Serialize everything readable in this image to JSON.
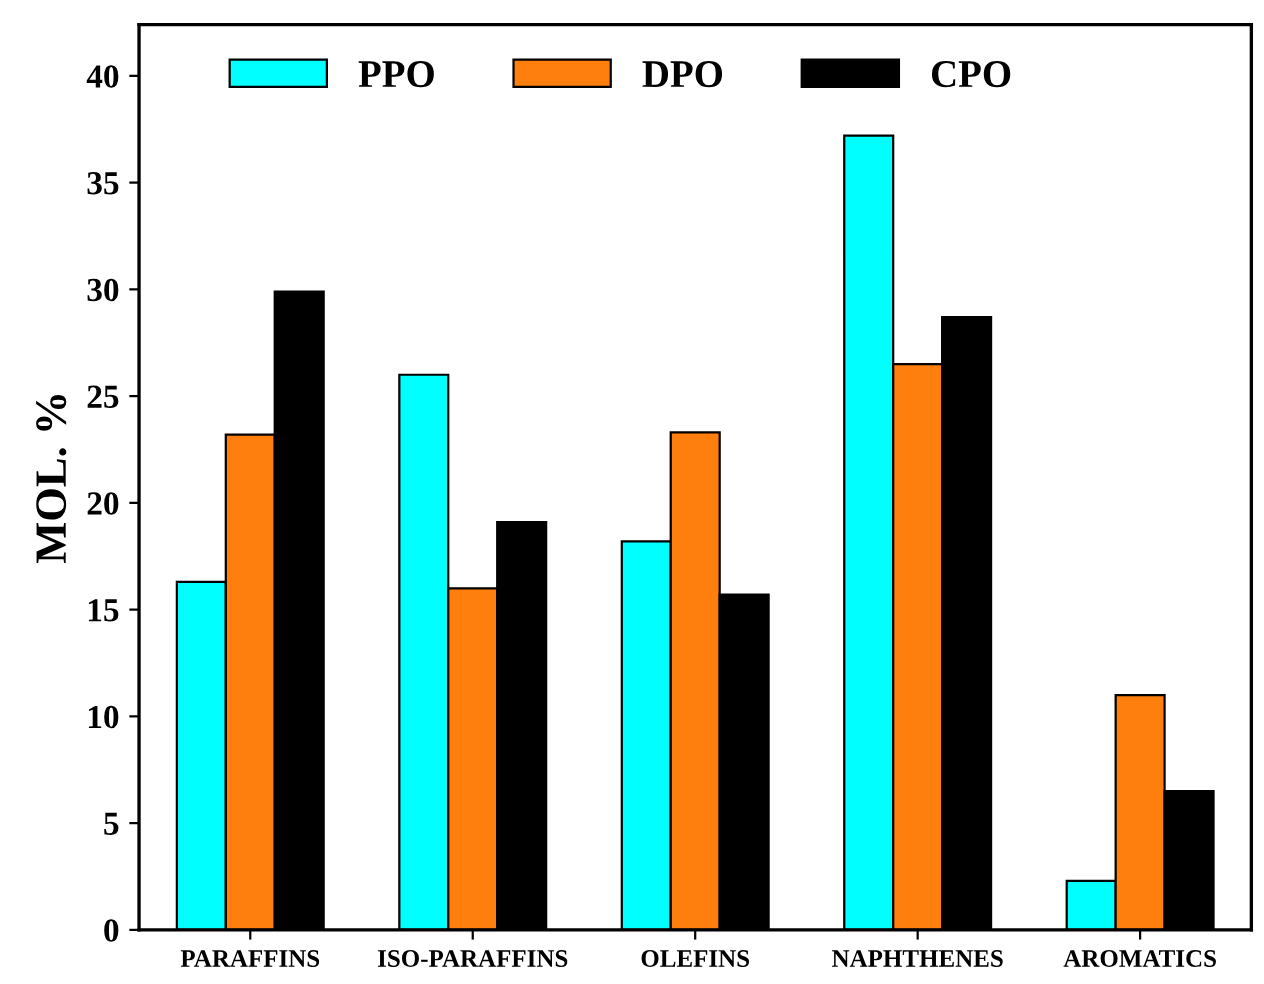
{
  "chart_data": {
    "type": "bar",
    "ylabel": "MOL. %",
    "categories": [
      "PARAFFINS",
      "ISO-PARAFFINS",
      "OLEFINS",
      "NAPHTHENES",
      "AROMATICS"
    ],
    "series": [
      {
        "name": "PPO",
        "color": "#00ffff",
        "values": [
          16.3,
          26.0,
          18.2,
          37.2,
          2.3
        ]
      },
      {
        "name": "DPO",
        "color": "#ff7f0e",
        "values": [
          23.2,
          16.0,
          23.3,
          26.5,
          11.0
        ]
      },
      {
        "name": "CPO",
        "color": "#000000",
        "values": [
          29.9,
          19.1,
          15.7,
          28.7,
          6.5
        ]
      }
    ],
    "ylim": [
      0,
      42.4
    ],
    "yticks": [
      0,
      5,
      10,
      15,
      20,
      25,
      30,
      35,
      40
    ],
    "legend": "top left",
    "grid": false
  }
}
